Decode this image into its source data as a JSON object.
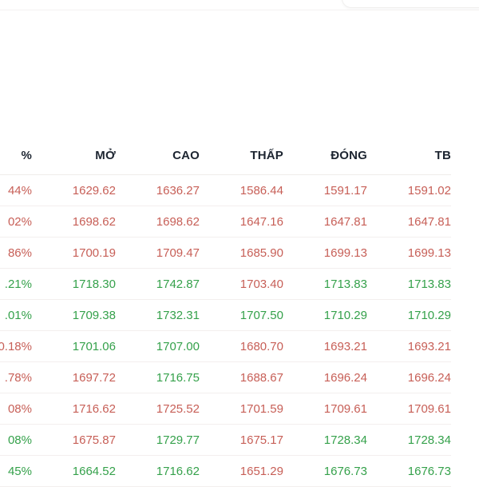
{
  "colors": {
    "up": "#35a14b",
    "down": "#c75f57",
    "header_text": "#1d2531",
    "separator": "#f3efee"
  },
  "table": {
    "headers": [
      {
        "key": "pct",
        "label": "%"
      },
      {
        "key": "open",
        "label": "MỞ"
      },
      {
        "key": "high",
        "label": "CAO"
      },
      {
        "key": "low",
        "label": "THẤP"
      },
      {
        "key": "close",
        "label": "ĐÓNG"
      },
      {
        "key": "avg",
        "label": "TB"
      }
    ],
    "rows": [
      {
        "cells": [
          {
            "text": "44%",
            "trend": "down"
          },
          {
            "text": "1629.62",
            "trend": "down"
          },
          {
            "text": "1636.27",
            "trend": "down"
          },
          {
            "text": "1586.44",
            "trend": "down"
          },
          {
            "text": "1591.17",
            "trend": "down"
          },
          {
            "text": "1591.02",
            "trend": "down"
          }
        ]
      },
      {
        "cells": [
          {
            "text": "02%",
            "trend": "down"
          },
          {
            "text": "1698.62",
            "trend": "down"
          },
          {
            "text": "1698.62",
            "trend": "down"
          },
          {
            "text": "1647.16",
            "trend": "down"
          },
          {
            "text": "1647.81",
            "trend": "down"
          },
          {
            "text": "1647.81",
            "trend": "down"
          }
        ]
      },
      {
        "cells": [
          {
            "text": "86%",
            "trend": "down"
          },
          {
            "text": "1700.19",
            "trend": "down"
          },
          {
            "text": "1709.47",
            "trend": "down"
          },
          {
            "text": "1685.90",
            "trend": "down"
          },
          {
            "text": "1699.13",
            "trend": "down"
          },
          {
            "text": "1699.13",
            "trend": "down"
          }
        ]
      },
      {
        "cells": [
          {
            "text": ".21%",
            "trend": "up"
          },
          {
            "text": "1718.30",
            "trend": "up"
          },
          {
            "text": "1742.87",
            "trend": "up"
          },
          {
            "text": "1703.40",
            "trend": "down"
          },
          {
            "text": "1713.83",
            "trend": "up"
          },
          {
            "text": "1713.83",
            "trend": "up"
          }
        ]
      },
      {
        "cells": [
          {
            "text": ".01%",
            "trend": "up"
          },
          {
            "text": "1709.38",
            "trend": "up"
          },
          {
            "text": "1732.31",
            "trend": "up"
          },
          {
            "text": "1707.50",
            "trend": "up"
          },
          {
            "text": "1710.29",
            "trend": "up"
          },
          {
            "text": "1710.29",
            "trend": "up"
          }
        ]
      },
      {
        "cells": [
          {
            "text": "0.18%",
            "trend": "down"
          },
          {
            "text": "1701.06",
            "trend": "up"
          },
          {
            "text": "1707.00",
            "trend": "up"
          },
          {
            "text": "1680.70",
            "trend": "down"
          },
          {
            "text": "1693.21",
            "trend": "down"
          },
          {
            "text": "1693.21",
            "trend": "down"
          }
        ]
      },
      {
        "cells": [
          {
            "text": ".78%",
            "trend": "down"
          },
          {
            "text": "1697.72",
            "trend": "down"
          },
          {
            "text": "1716.75",
            "trend": "up"
          },
          {
            "text": "1688.67",
            "trend": "down"
          },
          {
            "text": "1696.24",
            "trend": "down"
          },
          {
            "text": "1696.24",
            "trend": "down"
          }
        ]
      },
      {
        "cells": [
          {
            "text": "08%",
            "trend": "down"
          },
          {
            "text": "1716.62",
            "trend": "down"
          },
          {
            "text": "1725.52",
            "trend": "down"
          },
          {
            "text": "1701.59",
            "trend": "down"
          },
          {
            "text": "1709.61",
            "trend": "down"
          },
          {
            "text": "1709.61",
            "trend": "down"
          }
        ]
      },
      {
        "cells": [
          {
            "text": "08%",
            "trend": "up"
          },
          {
            "text": "1675.87",
            "trend": "down"
          },
          {
            "text": "1729.77",
            "trend": "up"
          },
          {
            "text": "1675.17",
            "trend": "down"
          },
          {
            "text": "1728.34",
            "trend": "up"
          },
          {
            "text": "1728.34",
            "trend": "up"
          }
        ]
      },
      {
        "cells": [
          {
            "text": "45%",
            "trend": "up"
          },
          {
            "text": "1664.52",
            "trend": "up"
          },
          {
            "text": "1716.62",
            "trend": "up"
          },
          {
            "text": "1651.29",
            "trend": "down"
          },
          {
            "text": "1676.73",
            "trend": "up"
          },
          {
            "text": "1676.73",
            "trend": "up"
          }
        ]
      }
    ]
  }
}
